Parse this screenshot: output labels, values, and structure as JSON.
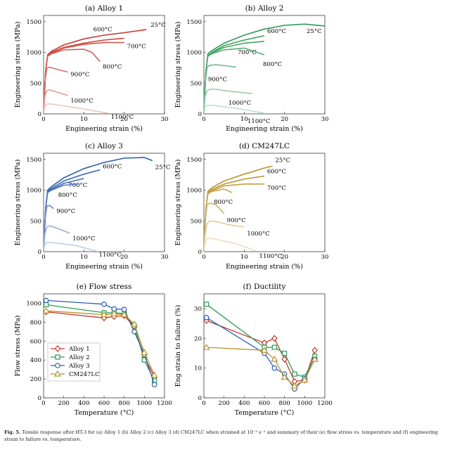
{
  "caption": {
    "label": "Fig. 5.",
    "text": "Tensile response after HT-3 for (a) Alloy 1 (b) Alloy 2 (c) Alloy 3 (d) CM247LC when strained at 10⁻³ s⁻¹ and summary of their (e) flow stress vs. temperature and (f) engineering strain to failure vs. temperature."
  },
  "chart_data": [
    {
      "type": "line",
      "title": "(a) Alloy 1",
      "xlabel": "Engineering strain (%)",
      "ylabel": "Engineering stress (MPa)",
      "xlim": [
        0,
        30
      ],
      "ylim": [
        0,
        1600
      ],
      "xticks": [
        0,
        10,
        20,
        30
      ],
      "yticks": [
        0,
        500,
        1000,
        1500
      ],
      "grid": false,
      "color": "#c8392f",
      "series": [
        {
          "name": "25°C",
          "x": [
            0,
            0.5,
            1,
            2,
            5,
            10,
            15,
            20,
            25.5
          ],
          "y": [
            0,
            700,
            960,
            1020,
            1120,
            1220,
            1280,
            1320,
            1370
          ]
        },
        {
          "name": "600°C",
          "x": [
            0,
            0.5,
            1,
            2,
            5,
            10,
            15,
            20
          ],
          "y": [
            0,
            700,
            950,
            1000,
            1080,
            1150,
            1200,
            1230
          ]
        },
        {
          "name": "700°C",
          "x": [
            0,
            0.5,
            1,
            2,
            5,
            10,
            15,
            20
          ],
          "y": [
            0,
            700,
            940,
            990,
            1070,
            1130,
            1160,
            1160
          ]
        },
        {
          "name": "800°C",
          "x": [
            0,
            0.5,
            1,
            2,
            5,
            10,
            12,
            14
          ],
          "y": [
            0,
            700,
            940,
            980,
            1040,
            1050,
            1000,
            850
          ]
        },
        {
          "name": "900°C",
          "x": [
            0,
            0.3,
            0.8,
            1.5,
            3,
            6
          ],
          "y": [
            0,
            500,
            740,
            760,
            730,
            680
          ]
        },
        {
          "name": "1000°C",
          "x": [
            0,
            0.3,
            0.8,
            1.5,
            3,
            6
          ],
          "y": [
            0,
            280,
            380,
            390,
            360,
            300
          ]
        },
        {
          "name": "1100°C",
          "x": [
            0,
            0.3,
            0.8,
            2,
            8,
            16
          ],
          "y": [
            0,
            120,
            160,
            160,
            100,
            10
          ]
        }
      ]
    },
    {
      "type": "line",
      "title": "(b) Alloy 2",
      "xlabel": "Engineering strain (%)",
      "ylabel": "Engineering stress (MPa)",
      "xlim": [
        0,
        30
      ],
      "ylim": [
        0,
        1600
      ],
      "xticks": [
        0,
        10,
        20,
        30
      ],
      "yticks": [
        0,
        500,
        1000,
        1500
      ],
      "grid": false,
      "color": "#2e9a55",
      "series": [
        {
          "name": "25°C",
          "x": [
            0,
            0.5,
            1,
            2,
            5,
            10,
            15,
            20,
            25,
            30
          ],
          "y": [
            0,
            700,
            980,
            1030,
            1150,
            1280,
            1380,
            1440,
            1460,
            1430
          ]
        },
        {
          "name": "600°C",
          "x": [
            0,
            0.5,
            1,
            2,
            5,
            10,
            15
          ],
          "y": [
            0,
            700,
            950,
            1000,
            1110,
            1200,
            1270
          ]
        },
        {
          "name": "700°C",
          "x": [
            0,
            0.5,
            1,
            2,
            5,
            10,
            15
          ],
          "y": [
            0,
            700,
            940,
            990,
            1080,
            1150,
            1180
          ]
        },
        {
          "name": "800°C",
          "x": [
            0,
            0.5,
            1,
            2,
            5,
            10,
            15
          ],
          "y": [
            0,
            700,
            940,
            980,
            1040,
            1070,
            960
          ]
        },
        {
          "name": "900°C",
          "x": [
            0,
            0.3,
            0.8,
            1.5,
            3,
            8
          ],
          "y": [
            0,
            500,
            760,
            790,
            800,
            760
          ]
        },
        {
          "name": "1000°C",
          "x": [
            0,
            0.3,
            0.8,
            1.5,
            3,
            6,
            12
          ],
          "y": [
            0,
            280,
            380,
            400,
            400,
            370,
            330
          ]
        },
        {
          "name": "1100°C",
          "x": [
            0,
            0.3,
            0.8,
            2,
            8,
            15
          ],
          "y": [
            0,
            110,
            140,
            140,
            90,
            10
          ]
        }
      ]
    },
    {
      "type": "line",
      "title": "(c) Alloy 3",
      "xlabel": "Engineering strain (%)",
      "ylabel": "Engineering stress (MPa)",
      "xlim": [
        0,
        30
      ],
      "ylim": [
        0,
        1600
      ],
      "xticks": [
        0,
        10,
        20,
        30
      ],
      "yticks": [
        0,
        500,
        1000,
        1500
      ],
      "grid": false,
      "color": "#2f5fb0",
      "series": [
        {
          "name": "25°C",
          "x": [
            0,
            0.5,
            1,
            2,
            5,
            10,
            15,
            20,
            25,
            27
          ],
          "y": [
            0,
            700,
            1000,
            1060,
            1200,
            1350,
            1450,
            1520,
            1530,
            1480
          ]
        },
        {
          "name": "600°C",
          "x": [
            0,
            0.5,
            1,
            2,
            5,
            10,
            14
          ],
          "y": [
            0,
            700,
            980,
            1030,
            1150,
            1260,
            1330
          ]
        },
        {
          "name": "700°C",
          "x": [
            0,
            0.5,
            1,
            2,
            5,
            10
          ],
          "y": [
            0,
            700,
            970,
            1010,
            1110,
            1190
          ]
        },
        {
          "name": "800°C",
          "x": [
            0,
            0.5,
            1,
            2,
            5,
            8.5
          ],
          "y": [
            0,
            700,
            960,
            1000,
            1080,
            1100
          ]
        },
        {
          "name": "900°C",
          "x": [
            0,
            0.3,
            0.8,
            1.5,
            2.5
          ],
          "y": [
            0,
            500,
            740,
            750,
            700
          ]
        },
        {
          "name": "1000°C",
          "x": [
            0,
            0.3,
            0.8,
            1.5,
            3,
            6.5
          ],
          "y": [
            0,
            280,
            400,
            420,
            390,
            300
          ]
        },
        {
          "name": "1100°C",
          "x": [
            0,
            0.3,
            0.8,
            2,
            8,
            13
          ],
          "y": [
            0,
            110,
            150,
            150,
            100,
            10
          ]
        }
      ]
    },
    {
      "type": "line",
      "title": "(d) CM247LC",
      "xlabel": "Engineering strain (%)",
      "ylabel": "Engineering stress (MPa)",
      "xlim": [
        0,
        30
      ],
      "ylim": [
        0,
        1600
      ],
      "xticks": [
        0,
        10,
        20,
        30
      ],
      "yticks": [
        0,
        500,
        1000,
        1500
      ],
      "grid": false,
      "color": "#b9952b",
      "series": [
        {
          "name": "25°C",
          "x": [
            0,
            0.5,
            1,
            2,
            5,
            10,
            15,
            17
          ],
          "y": [
            0,
            700,
            980,
            1040,
            1150,
            1260,
            1360,
            1390
          ]
        },
        {
          "name": "600°C",
          "x": [
            0,
            0.5,
            1,
            2,
            5,
            10,
            15
          ],
          "y": [
            0,
            700,
            960,
            1010,
            1100,
            1180,
            1230
          ]
        },
        {
          "name": "700°C",
          "x": [
            0,
            0.5,
            1,
            2,
            5,
            10,
            15
          ],
          "y": [
            0,
            700,
            950,
            990,
            1070,
            1100,
            1100
          ]
        },
        {
          "name": "800°C",
          "x": [
            0,
            0.5,
            1,
            2,
            5,
            7
          ],
          "y": [
            0,
            700,
            940,
            980,
            1020,
            960
          ]
        },
        {
          "name": "900°C",
          "x": [
            0,
            0.3,
            0.8,
            1.5,
            3,
            5
          ],
          "y": [
            0,
            500,
            760,
            790,
            760,
            620
          ]
        },
        {
          "name": "1000°C",
          "x": [
            0,
            0.3,
            0.8,
            1.5,
            3,
            6,
            10
          ],
          "y": [
            0,
            280,
            460,
            500,
            490,
            440,
            400
          ]
        },
        {
          "name": "1100°C",
          "x": [
            0,
            0.3,
            0.8,
            2,
            8,
            13
          ],
          "y": [
            0,
            150,
            210,
            215,
            130,
            10
          ]
        }
      ]
    },
    {
      "type": "line",
      "title": "(e) Flow stress",
      "xlabel": "Temperature (°C)",
      "ylabel": "Flow stress (MPa)",
      "xlim": [
        0,
        1200
      ],
      "ylim": [
        0,
        1100
      ],
      "xticks": [
        0,
        200,
        400,
        600,
        800,
        1000,
        1200
      ],
      "yticks": [
        0,
        200,
        400,
        600,
        800,
        1000
      ],
      "grid": false,
      "legend": "lower-left",
      "x": [
        25,
        600,
        700,
        800,
        900,
        1000,
        1100
      ],
      "series": [
        {
          "name": "Alloy 1",
          "marker": "diamond",
          "color": "#c8392f",
          "values": [
            910,
            845,
            860,
            870,
            750,
            430,
            220
          ]
        },
        {
          "name": "Alloy 2",
          "marker": "square",
          "color": "#2e9a55",
          "values": [
            985,
            900,
            900,
            890,
            760,
            400,
            180
          ]
        },
        {
          "name": "Alloy 3",
          "marker": "circle",
          "color": "#2f5fb0",
          "values": [
            1030,
            990,
            940,
            935,
            700,
            460,
            140
          ]
        },
        {
          "name": "CM247LC",
          "marker": "triangle",
          "color": "#b9952b",
          "values": [
            920,
            880,
            890,
            880,
            780,
            480,
            240
          ]
        }
      ]
    },
    {
      "type": "line",
      "title": "(f) Ductility",
      "xlabel": "Temperature (°C)",
      "ylabel": "Eng strain to failure (%)",
      "xlim": [
        0,
        1200
      ],
      "ylim": [
        0,
        35
      ],
      "xticks": [
        0,
        200,
        400,
        600,
        800,
        1000,
        1200
      ],
      "yticks": [
        0,
        10,
        20,
        30
      ],
      "grid": false,
      "x": [
        25,
        600,
        700,
        800,
        900,
        1000,
        1100
      ],
      "series": [
        {
          "name": "Alloy 1",
          "marker": "diamond",
          "color": "#c8392f",
          "values": [
            26,
            18.5,
            20,
            13,
            5.5,
            6,
            16
          ]
        },
        {
          "name": "Alloy 2",
          "marker": "square",
          "color": "#2e9a55",
          "values": [
            31.5,
            17,
            17,
            15,
            8,
            7,
            14
          ]
        },
        {
          "name": "Alloy 3",
          "marker": "circle",
          "color": "#2f5fb0",
          "values": [
            27,
            15,
            10,
            8,
            3,
            6.5,
            13
          ]
        },
        {
          "name": "CM247LC",
          "marker": "triangle",
          "color": "#b9952b",
          "values": [
            17,
            16,
            13,
            7,
            4,
            6,
            13
          ]
        }
      ]
    }
  ]
}
